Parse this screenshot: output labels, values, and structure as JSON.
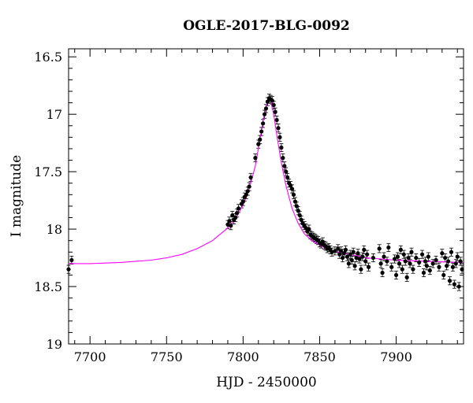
{
  "chart_data": {
    "type": "scatter",
    "title": "OGLE-2017-BLG-0092",
    "xlabel": "HJD - 2450000",
    "ylabel": "I magnitude",
    "xlim": [
      7686,
      7944
    ],
    "ylim": [
      19.0,
      16.43
    ],
    "y_inverted": true,
    "xticks": [
      7700,
      7750,
      7800,
      7850,
      7900
    ],
    "yticks": [
      16.5,
      17,
      17.5,
      18,
      18.5,
      19
    ],
    "xtick_labels": [
      "7700",
      "7750",
      "7800",
      "7850",
      "7900"
    ],
    "ytick_labels": [
      "16.5",
      "17",
      "17.5",
      "18",
      "18.5",
      "19"
    ],
    "grid": false,
    "colors": {
      "data": "#000000",
      "model": "#ff00ff"
    },
    "model_curve": {
      "name": "",
      "x": [
        7686,
        7700,
        7720,
        7740,
        7750,
        7760,
        7770,
        7780,
        7790,
        7795,
        7800,
        7804,
        7808,
        7811,
        7814,
        7816,
        7817,
        7818,
        7820,
        7822,
        7825,
        7828,
        7832,
        7836,
        7840,
        7845,
        7850,
        7856,
        7862,
        7870,
        7880,
        7890,
        7900,
        7910,
        7920,
        7930,
        7944
      ],
      "y": [
        18.3,
        18.3,
        18.29,
        18.27,
        18.25,
        18.22,
        18.17,
        18.1,
        17.99,
        17.91,
        17.79,
        17.65,
        17.45,
        17.22,
        16.99,
        16.88,
        16.86,
        16.88,
        17.0,
        17.18,
        17.42,
        17.62,
        17.82,
        17.95,
        18.04,
        18.1,
        18.14,
        18.18,
        18.2,
        18.22,
        18.25,
        18.26,
        18.27,
        18.275,
        18.28,
        18.285,
        18.29
      ]
    },
    "series": [
      {
        "name": "",
        "x": [
          7686,
          7688,
          7790,
          7791,
          7792,
          7793,
          7794,
          7795,
          7796,
          7797,
          7799,
          7800,
          7801,
          7802,
          7803,
          7804,
          7805,
          7808,
          7810,
          7811,
          7812,
          7813,
          7814,
          7815,
          7816,
          7817,
          7818,
          7819,
          7820,
          7821,
          7822,
          7823,
          7824,
          7825,
          7826,
          7827,
          7828,
          7829,
          7830,
          7831,
          7832,
          7833,
          7834,
          7835,
          7836,
          7837,
          7838,
          7839,
          7840,
          7841,
          7842,
          7843,
          7844,
          7845,
          7846,
          7847,
          7848,
          7849,
          7850,
          7851,
          7852,
          7853,
          7854,
          7855,
          7856,
          7857,
          7858,
          7860,
          7862,
          7863,
          7864,
          7865,
          7866,
          7867,
          7868,
          7869,
          7870,
          7871,
          7872,
          7873,
          7874,
          7875,
          7876,
          7877,
          7878,
          7879,
          7880,
          7881,
          7882,
          7885,
          7889,
          7890,
          7891,
          7892,
          7894,
          7895,
          7897,
          7899,
          7900,
          7901,
          7902,
          7903,
          7904,
          7905,
          7906,
          7907,
          7908,
          7909,
          7910,
          7911,
          7913,
          7915,
          7917,
          7918,
          7919,
          7920,
          7921,
          7922,
          7924,
          7926,
          7928,
          7930,
          7931,
          7932,
          7933,
          7934,
          7935,
          7936,
          7937,
          7938,
          7939,
          7940,
          7941,
          7942,
          7943
        ],
        "y": [
          18.35,
          18.27,
          17.96,
          17.93,
          17.97,
          17.88,
          17.92,
          17.9,
          17.86,
          17.82,
          17.78,
          17.76,
          17.72,
          17.7,
          17.67,
          17.63,
          17.55,
          17.38,
          17.26,
          17.22,
          17.15,
          17.08,
          17.0,
          16.95,
          16.89,
          16.86,
          16.87,
          16.88,
          16.92,
          16.98,
          17.05,
          17.12,
          17.2,
          17.29,
          17.38,
          17.45,
          17.5,
          17.55,
          17.6,
          17.62,
          17.65,
          17.7,
          17.76,
          17.8,
          17.84,
          17.88,
          17.92,
          17.95,
          17.97,
          17.99,
          18.02,
          18.0,
          18.05,
          18.06,
          18.07,
          18.08,
          18.09,
          18.1,
          18.12,
          18.13,
          18.11,
          18.14,
          18.15,
          18.17,
          18.16,
          18.18,
          18.2,
          18.19,
          18.17,
          18.22,
          18.19,
          18.25,
          18.21,
          18.18,
          18.24,
          18.3,
          18.22,
          18.27,
          18.2,
          18.32,
          18.25,
          18.21,
          18.26,
          18.35,
          18.24,
          18.18,
          18.28,
          18.22,
          18.33,
          18.25,
          18.17,
          18.3,
          18.38,
          18.24,
          18.28,
          18.16,
          18.33,
          18.26,
          18.4,
          18.24,
          18.3,
          18.18,
          18.35,
          18.22,
          18.28,
          18.42,
          18.25,
          18.3,
          18.2,
          18.35,
          18.25,
          18.29,
          18.22,
          18.38,
          18.28,
          18.32,
          18.24,
          18.36,
          18.3,
          18.27,
          18.33,
          18.21,
          18.4,
          18.25,
          18.32,
          18.28,
          18.45,
          18.2,
          18.33,
          18.48,
          18.3,
          18.24,
          18.5,
          18.28,
          18.35
        ],
        "yerr": 0.035
      }
    ]
  }
}
